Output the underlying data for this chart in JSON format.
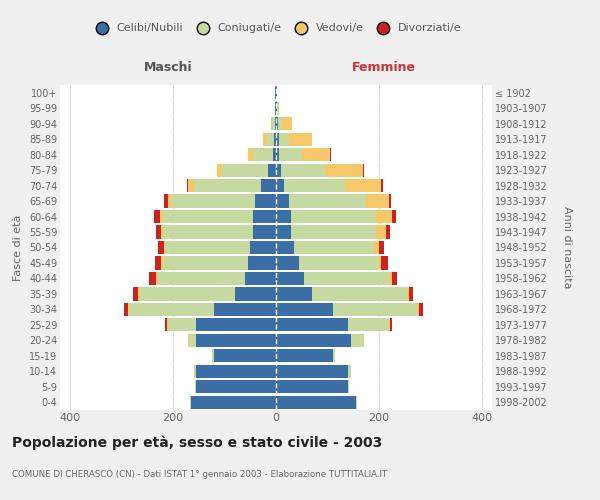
{
  "age_groups": [
    "0-4",
    "5-9",
    "10-14",
    "15-19",
    "20-24",
    "25-29",
    "30-34",
    "35-39",
    "40-44",
    "45-49",
    "50-54",
    "55-59",
    "60-64",
    "65-69",
    "70-74",
    "75-79",
    "80-84",
    "85-89",
    "90-94",
    "95-99",
    "100+"
  ],
  "birth_years": [
    "1998-2002",
    "1993-1997",
    "1988-1992",
    "1983-1987",
    "1978-1982",
    "1973-1977",
    "1968-1972",
    "1963-1967",
    "1958-1962",
    "1953-1957",
    "1948-1952",
    "1943-1947",
    "1938-1942",
    "1933-1937",
    "1928-1932",
    "1923-1927",
    "1918-1922",
    "1913-1917",
    "1908-1912",
    "1903-1907",
    "≤ 1902"
  ],
  "males": {
    "celibi": [
      165,
      155,
      155,
      120,
      155,
      155,
      120,
      80,
      60,
      55,
      50,
      45,
      45,
      40,
      30,
      15,
      5,
      3,
      2,
      1,
      1
    ],
    "coniugati": [
      2,
      2,
      5,
      5,
      15,
      55,
      165,
      185,
      170,
      165,
      165,
      175,
      175,
      165,
      130,
      90,
      40,
      15,
      5,
      1,
      0
    ],
    "vedovi": [
      0,
      0,
      0,
      0,
      1,
      2,
      3,
      3,
      3,
      3,
      3,
      3,
      5,
      5,
      12,
      10,
      10,
      8,
      3,
      0,
      0
    ],
    "divorziati": [
      0,
      0,
      0,
      0,
      1,
      3,
      8,
      10,
      14,
      12,
      12,
      10,
      12,
      8,
      2,
      0,
      0,
      0,
      0,
      0,
      0
    ]
  },
  "females": {
    "nubili": [
      155,
      140,
      140,
      110,
      145,
      140,
      110,
      70,
      55,
      45,
      35,
      30,
      30,
      25,
      15,
      10,
      5,
      5,
      3,
      1,
      1
    ],
    "coniugate": [
      2,
      2,
      5,
      5,
      25,
      80,
      165,
      185,
      165,
      155,
      155,
      165,
      165,
      150,
      120,
      85,
      45,
      20,
      8,
      2,
      0
    ],
    "vedove": [
      0,
      0,
      0,
      0,
      1,
      2,
      3,
      3,
      5,
      5,
      10,
      18,
      30,
      45,
      70,
      75,
      55,
      45,
      20,
      3,
      1
    ],
    "divorziate": [
      0,
      0,
      0,
      0,
      1,
      3,
      8,
      8,
      10,
      12,
      10,
      8,
      8,
      3,
      3,
      2,
      1,
      0,
      0,
      0,
      0
    ]
  },
  "colors": {
    "celibi_nubili": "#3a6ea5",
    "coniugati": "#c5d9a0",
    "vedovi": "#f5c96a",
    "divorziati": "#cc2222"
  },
  "xlim": 420,
  "title": "Popolazione per età, sesso e stato civile - 2003",
  "subtitle": "COMUNE DI CHERASCO (CN) - Dati ISTAT 1° gennaio 2003 - Elaborazione TUTTITALIA.IT",
  "xlabel_left": "Maschi",
  "xlabel_right": "Femmine",
  "ylabel_left": "Fasce di età",
  "ylabel_right": "Anni di nascita",
  "legend_labels": [
    "Celibi/Nubili",
    "Coniugati/e",
    "Vedovi/e",
    "Divorziati/e"
  ],
  "bg_color": "#f0f0f0",
  "plot_bg": "#ffffff",
  "bar_height": 0.85
}
